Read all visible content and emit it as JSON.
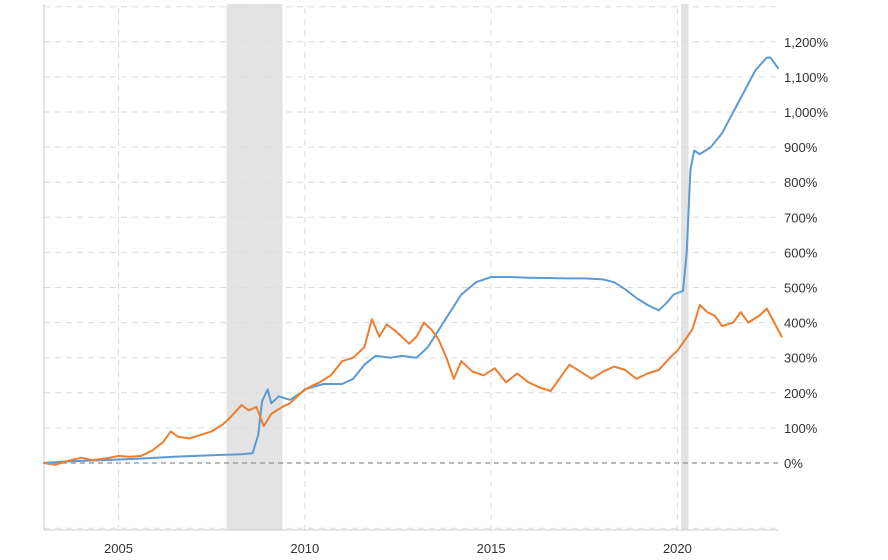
{
  "chart_data": {
    "type": "line",
    "title": "",
    "xlabel": "",
    "ylabel": "",
    "xlim": [
      2003.0,
      2022.7
    ],
    "ylim": [
      -200,
      1300
    ],
    "x_ticks": [
      {
        "value": 2005,
        "label": "2005"
      },
      {
        "value": 2010,
        "label": "2010"
      },
      {
        "value": 2015,
        "label": "2015"
      },
      {
        "value": 2020,
        "label": "2020"
      }
    ],
    "y_ticks": [
      {
        "value": 0,
        "label": "0%"
      },
      {
        "value": 100,
        "label": "100%"
      },
      {
        "value": 200,
        "label": "200%"
      },
      {
        "value": 300,
        "label": "300%"
      },
      {
        "value": 400,
        "label": "400%"
      },
      {
        "value": 500,
        "label": "500%"
      },
      {
        "value": 600,
        "label": "600%"
      },
      {
        "value": 700,
        "label": "700%"
      },
      {
        "value": 800,
        "label": "800%"
      },
      {
        "value": 900,
        "label": "900%"
      },
      {
        "value": 1000,
        "label": "1,000%"
      },
      {
        "value": 1100,
        "label": "1,100%"
      },
      {
        "value": 1200,
        "label": "1,200%"
      }
    ],
    "grid": true,
    "recession_bands": [
      [
        2007.9,
        2009.4
      ],
      [
        2020.1,
        2020.3
      ]
    ],
    "colors": {
      "series_1": "#5b9bd5",
      "series_2": "#ed7d31",
      "recession": "#e3e3e3"
    },
    "series": [
      {
        "color": "#5b9bd5",
        "points": [
          [
            2003.0,
            0
          ],
          [
            2003.5,
            4
          ],
          [
            2004.0,
            6
          ],
          [
            2004.5,
            8
          ],
          [
            2005.0,
            10
          ],
          [
            2005.5,
            12
          ],
          [
            2006.0,
            15
          ],
          [
            2006.5,
            18
          ],
          [
            2007.0,
            20
          ],
          [
            2007.5,
            22
          ],
          [
            2008.0,
            24
          ],
          [
            2008.3,
            25
          ],
          [
            2008.6,
            28
          ],
          [
            2008.75,
            80
          ],
          [
            2008.85,
            175
          ],
          [
            2009.0,
            210
          ],
          [
            2009.1,
            170
          ],
          [
            2009.3,
            190
          ],
          [
            2009.6,
            180
          ],
          [
            2009.9,
            200
          ],
          [
            2010.0,
            210
          ],
          [
            2010.5,
            225
          ],
          [
            2011.0,
            225
          ],
          [
            2011.3,
            240
          ],
          [
            2011.6,
            280
          ],
          [
            2011.9,
            305
          ],
          [
            2012.3,
            300
          ],
          [
            2012.6,
            305
          ],
          [
            2013.0,
            300
          ],
          [
            2013.3,
            330
          ],
          [
            2013.6,
            380
          ],
          [
            2013.9,
            430
          ],
          [
            2014.2,
            480
          ],
          [
            2014.6,
            515
          ],
          [
            2015.0,
            530
          ],
          [
            2015.5,
            530
          ],
          [
            2016.0,
            528
          ],
          [
            2016.5,
            527
          ],
          [
            2017.0,
            526
          ],
          [
            2017.5,
            526
          ],
          [
            2018.0,
            523
          ],
          [
            2018.3,
            515
          ],
          [
            2018.6,
            495
          ],
          [
            2018.9,
            470
          ],
          [
            2019.2,
            450
          ],
          [
            2019.5,
            435
          ],
          [
            2019.7,
            455
          ],
          [
            2019.9,
            480
          ],
          [
            2020.15,
            490
          ],
          [
            2020.25,
            600
          ],
          [
            2020.35,
            835
          ],
          [
            2020.45,
            890
          ],
          [
            2020.6,
            880
          ],
          [
            2020.9,
            900
          ],
          [
            2021.2,
            940
          ],
          [
            2021.5,
            1000
          ],
          [
            2021.8,
            1060
          ],
          [
            2022.1,
            1120
          ],
          [
            2022.4,
            1155
          ],
          [
            2022.5,
            1155
          ],
          [
            2022.7,
            1125
          ]
        ]
      },
      {
        "color": "#ed7d31",
        "points": [
          [
            2003.0,
            0
          ],
          [
            2003.3,
            -5
          ],
          [
            2003.6,
            5
          ],
          [
            2004.0,
            15
          ],
          [
            2004.3,
            8
          ],
          [
            2004.6,
            12
          ],
          [
            2005.0,
            20
          ],
          [
            2005.3,
            18
          ],
          [
            2005.6,
            20
          ],
          [
            2005.9,
            35
          ],
          [
            2006.2,
            60
          ],
          [
            2006.4,
            90
          ],
          [
            2006.6,
            75
          ],
          [
            2006.9,
            70
          ],
          [
            2007.2,
            80
          ],
          [
            2007.5,
            90
          ],
          [
            2007.8,
            110
          ],
          [
            2008.0,
            130
          ],
          [
            2008.3,
            165
          ],
          [
            2008.5,
            150
          ],
          [
            2008.7,
            160
          ],
          [
            2008.9,
            105
          ],
          [
            2009.1,
            140
          ],
          [
            2009.4,
            160
          ],
          [
            2009.6,
            170
          ],
          [
            2009.9,
            200
          ],
          [
            2010.1,
            215
          ],
          [
            2010.4,
            230
          ],
          [
            2010.7,
            250
          ],
          [
            2011.0,
            290
          ],
          [
            2011.3,
            300
          ],
          [
            2011.6,
            330
          ],
          [
            2011.8,
            410
          ],
          [
            2012.0,
            360
          ],
          [
            2012.2,
            395
          ],
          [
            2012.5,
            370
          ],
          [
            2012.8,
            340
          ],
          [
            2013.0,
            360
          ],
          [
            2013.2,
            400
          ],
          [
            2013.4,
            380
          ],
          [
            2013.6,
            350
          ],
          [
            2013.8,
            300
          ],
          [
            2014.0,
            240
          ],
          [
            2014.2,
            290
          ],
          [
            2014.5,
            260
          ],
          [
            2014.8,
            250
          ],
          [
            2015.1,
            270
          ],
          [
            2015.4,
            230
          ],
          [
            2015.7,
            255
          ],
          [
            2016.0,
            230
          ],
          [
            2016.3,
            215
          ],
          [
            2016.6,
            205
          ],
          [
            2016.9,
            250
          ],
          [
            2017.1,
            280
          ],
          [
            2017.4,
            260
          ],
          [
            2017.7,
            240
          ],
          [
            2018.0,
            260
          ],
          [
            2018.3,
            275
          ],
          [
            2018.6,
            265
          ],
          [
            2018.9,
            240
          ],
          [
            2019.2,
            255
          ],
          [
            2019.5,
            265
          ],
          [
            2019.8,
            300
          ],
          [
            2020.0,
            320
          ],
          [
            2020.2,
            350
          ],
          [
            2020.4,
            380
          ],
          [
            2020.6,
            450
          ],
          [
            2020.8,
            430
          ],
          [
            2021.0,
            420
          ],
          [
            2021.2,
            390
          ],
          [
            2021.5,
            400
          ],
          [
            2021.7,
            430
          ],
          [
            2021.9,
            400
          ],
          [
            2022.2,
            420
          ],
          [
            2022.4,
            440
          ],
          [
            2022.6,
            400
          ],
          [
            2022.8,
            360
          ]
        ]
      }
    ]
  }
}
